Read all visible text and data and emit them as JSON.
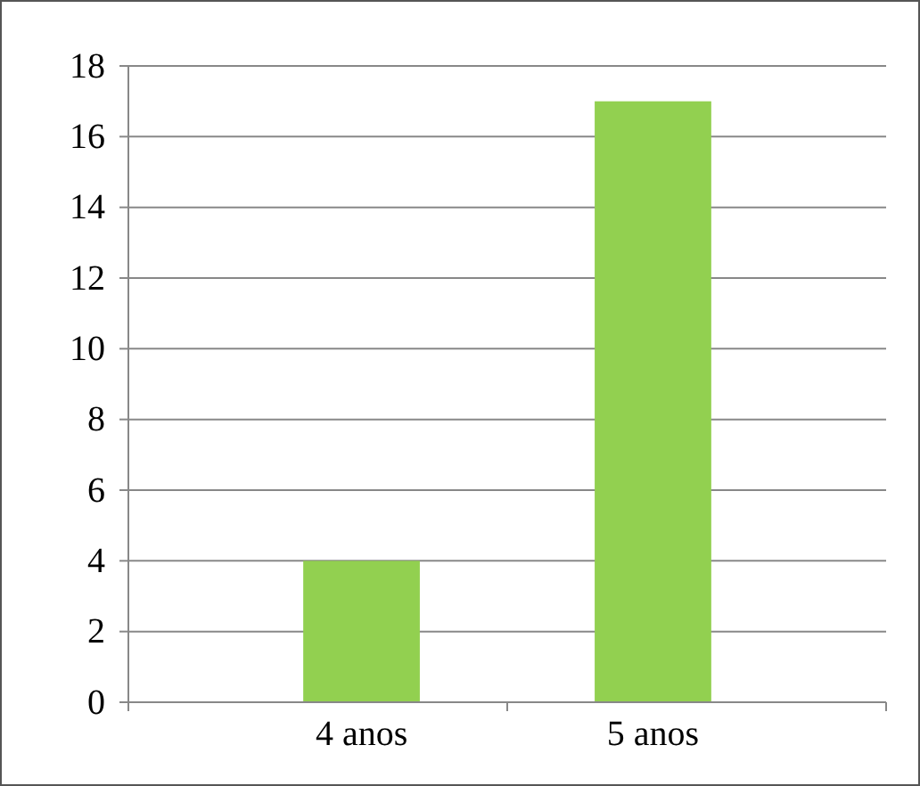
{
  "chart_data": {
    "type": "bar",
    "categories": [
      "4 anos",
      "5 anos"
    ],
    "values": [
      4,
      17
    ],
    "color": "#92d050",
    "ylim": [
      0,
      18
    ],
    "yticks": [
      0,
      2,
      4,
      6,
      8,
      10,
      12,
      14,
      16,
      18
    ],
    "grid": "y"
  }
}
